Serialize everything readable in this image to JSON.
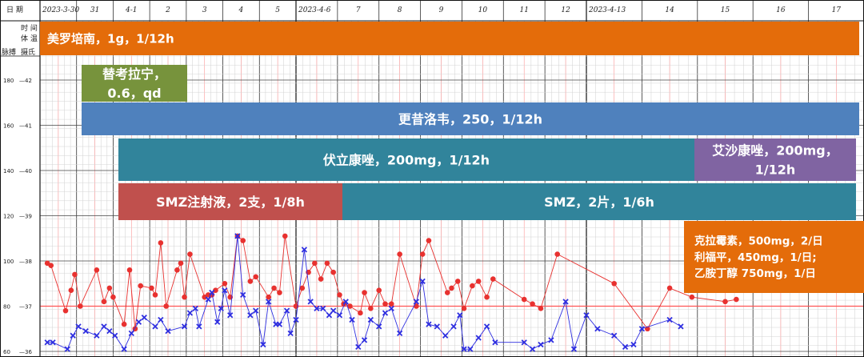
{
  "header": {
    "row_date_label": "日 期",
    "row_time_label": "时 间",
    "row_temp_label": "体 温",
    "pulse_label": "脉搏",
    "temp_unit_label": "摄氏",
    "dates": [
      "2023-3-30",
      "31",
      "4-1",
      "2",
      "3",
      "4",
      "5",
      "2023-4-6",
      "7",
      "8",
      "9",
      "10",
      "11",
      "12",
      "2023-4-13",
      "14",
      "15",
      "16",
      "17"
    ]
  },
  "axis": {
    "pulse_ticks": [
      "180",
      "160",
      "140",
      "120",
      "100",
      "80",
      "60"
    ],
    "temp_ticks": [
      "42",
      "41",
      "40",
      "39",
      "38",
      "37",
      "36"
    ]
  },
  "colors": {
    "orange": "#E46C0A",
    "green": "#77933C",
    "blue": "#4F81BD",
    "teal": "#31849B",
    "red": "#C0504D",
    "purple": "#8064A2",
    "red_line": "#FF5555",
    "red_series": "#E8312F",
    "blue_series": "#2E2EE0"
  },
  "treatments": [
    {
      "id": "meropenem",
      "label_lines": [
        "美罗培南，1g，1/12h"
      ],
      "color": "orange",
      "start_day": 0,
      "end_day": 19,
      "row": 0,
      "align": "left"
    },
    {
      "id": "tigecycline",
      "label_lines": [
        "替考拉宁，",
        "0.6，qd"
      ],
      "color": "green",
      "start_day": 1,
      "end_day": 3,
      "row": 1,
      "align": "center"
    },
    {
      "id": "ganciclovir",
      "label_lines": [
        "更昔洛韦，250，1/12h"
      ],
      "color": "blue",
      "start_day": 1,
      "end_day": 19,
      "row": 2,
      "align": "center"
    },
    {
      "id": "voriconazole",
      "label_lines": [
        "伏立康唑，200mg，1/12h"
      ],
      "color": "teal",
      "start_day": 2,
      "end_day": 16,
      "row": 3,
      "align": "center"
    },
    {
      "id": "isavuconazole",
      "label_lines": [
        "艾沙康唑，200mg，",
        "1/12h"
      ],
      "color": "purple",
      "start_day": 16,
      "end_day": 19,
      "row": 3,
      "align": "center"
    },
    {
      "id": "smz_iv",
      "label_lines": [
        "SMZ注射液，2支，1/8h"
      ],
      "color": "red",
      "start_day": 2,
      "end_day": 8,
      "row": 4,
      "align": "center"
    },
    {
      "id": "smz_po",
      "label_lines": [
        "SMZ，2片，1/6h"
      ],
      "color": "teal",
      "start_day": 8,
      "end_day": 19,
      "row": 4,
      "align": "center"
    },
    {
      "id": "combo",
      "label_lines": [
        "克拉霉素，500mg，2/日",
        "利福平，450mg，1/日;",
        "乙胺丁醇 750mg，1/日"
      ],
      "color": "orange",
      "start_day": 16,
      "end_day": 19,
      "row": 5,
      "align": "left"
    }
  ],
  "chart_data": {
    "type": "line",
    "title": "",
    "xlabel": "",
    "ylabel": "",
    "ylim_pulse": [
      60,
      190
    ],
    "ylim_temp": [
      36,
      42.5
    ],
    "series": [
      {
        "name": "",
        "color": "red_series",
        "marker": "circle",
        "values": [
          [
            0.2,
            99
          ],
          [
            0.3,
            98
          ],
          [
            0.7,
            78
          ],
          [
            0.85,
            87
          ],
          [
            0.95,
            94
          ],
          [
            1.1,
            80
          ],
          [
            1.55,
            96
          ],
          [
            1.75,
            82
          ],
          [
            1.9,
            88
          ],
          [
            2.0,
            84
          ],
          [
            2.3,
            72
          ],
          [
            2.45,
            96
          ],
          [
            2.6,
            70
          ],
          [
            2.75,
            89
          ],
          [
            3.05,
            88
          ],
          [
            3.15,
            85
          ],
          [
            3.3,
            108
          ],
          [
            3.45,
            80
          ],
          [
            3.75,
            96
          ],
          [
            3.85,
            99
          ],
          [
            3.95,
            84
          ],
          [
            4.1,
            103
          ],
          [
            4.5,
            84
          ],
          [
            4.6,
            85
          ],
          [
            4.7,
            85
          ],
          [
            4.8,
            87
          ],
          [
            5.05,
            90
          ],
          [
            5.2,
            84
          ],
          [
            5.4,
            111
          ],
          [
            5.55,
            109
          ],
          [
            5.75,
            91
          ],
          [
            5.9,
            93
          ],
          [
            6.25,
            84
          ],
          [
            6.4,
            88
          ],
          [
            6.55,
            86
          ],
          [
            6.7,
            111
          ],
          [
            7.0,
            80
          ],
          [
            7.15,
            88
          ],
          [
            7.3,
            95
          ],
          [
            7.45,
            99
          ],
          [
            7.6,
            92
          ],
          [
            7.75,
            99
          ],
          [
            7.9,
            95
          ],
          [
            8.05,
            85
          ],
          [
            8.15,
            81
          ],
          [
            8.3,
            80
          ],
          [
            8.55,
            77
          ],
          [
            8.65,
            86
          ],
          [
            8.8,
            79
          ],
          [
            9.0,
            87
          ],
          [
            9.15,
            81
          ],
          [
            9.3,
            81
          ],
          [
            9.5,
            103
          ],
          [
            9.9,
            80
          ],
          [
            10.05,
            103
          ],
          [
            10.2,
            109
          ],
          [
            10.65,
            86
          ],
          [
            10.75,
            88
          ],
          [
            10.9,
            91
          ],
          [
            11.05,
            79
          ],
          [
            11.25,
            89
          ],
          [
            11.4,
            91
          ],
          [
            11.6,
            84
          ],
          [
            11.75,
            92
          ],
          [
            12.5,
            83
          ],
          [
            12.7,
            81
          ],
          [
            12.9,
            79
          ],
          [
            13.3,
            103
          ],
          [
            14.5,
            90
          ],
          [
            15.1,
            70
          ],
          [
            15.5,
            88
          ],
          [
            15.9,
            84
          ],
          [
            16.5,
            82
          ],
          [
            16.7,
            83
          ]
        ]
      },
      {
        "name": "",
        "color": "blue_series",
        "marker": "cross",
        "values": [
          [
            0.2,
            64
          ],
          [
            0.35,
            64
          ],
          [
            0.75,
            61
          ],
          [
            0.9,
            67
          ],
          [
            1.05,
            71
          ],
          [
            1.25,
            69
          ],
          [
            1.55,
            67
          ],
          [
            1.75,
            71
          ],
          [
            1.9,
            69
          ],
          [
            2.05,
            67
          ],
          [
            2.3,
            61
          ],
          [
            2.5,
            68
          ],
          [
            2.7,
            73
          ],
          [
            2.85,
            75
          ],
          [
            3.15,
            71
          ],
          [
            3.3,
            74
          ],
          [
            3.5,
            69
          ],
          [
            3.95,
            71
          ],
          [
            4.1,
            77
          ],
          [
            4.25,
            79
          ],
          [
            4.35,
            71
          ],
          [
            4.6,
            83
          ],
          [
            4.7,
            86
          ],
          [
            4.85,
            73
          ],
          [
            4.95,
            79
          ],
          [
            5.05,
            87
          ],
          [
            5.2,
            76
          ],
          [
            5.4,
            111
          ],
          [
            5.55,
            85
          ],
          [
            5.75,
            76
          ],
          [
            5.9,
            78
          ],
          [
            6.1,
            63
          ],
          [
            6.25,
            82
          ],
          [
            6.45,
            72
          ],
          [
            6.55,
            72
          ],
          [
            6.75,
            78
          ],
          [
            6.85,
            68
          ],
          [
            7.0,
            74
          ],
          [
            7.2,
            105
          ],
          [
            7.35,
            82
          ],
          [
            7.5,
            79
          ],
          [
            7.65,
            79
          ],
          [
            7.8,
            76
          ],
          [
            7.9,
            78
          ],
          [
            8.05,
            76
          ],
          [
            8.2,
            82
          ],
          [
            8.35,
            74
          ],
          [
            8.5,
            62
          ],
          [
            8.65,
            65
          ],
          [
            8.8,
            74
          ],
          [
            9.0,
            71
          ],
          [
            9.15,
            77
          ],
          [
            9.3,
            79
          ],
          [
            9.5,
            68
          ],
          [
            9.9,
            82
          ],
          [
            10.05,
            91
          ],
          [
            10.2,
            72
          ],
          [
            10.4,
            71
          ],
          [
            10.6,
            67
          ],
          [
            10.8,
            71
          ],
          [
            10.95,
            76
          ],
          [
            11.05,
            61
          ],
          [
            11.2,
            61
          ],
          [
            11.4,
            66
          ],
          [
            11.6,
            71
          ],
          [
            11.8,
            64
          ],
          [
            12.5,
            64
          ],
          [
            12.7,
            61
          ],
          [
            12.9,
            63
          ],
          [
            13.15,
            65
          ],
          [
            13.5,
            82
          ],
          [
            13.7,
            61
          ],
          [
            14.0,
            76
          ],
          [
            14.2,
            70
          ],
          [
            14.5,
            67
          ],
          [
            14.7,
            62
          ],
          [
            14.85,
            63
          ],
          [
            15.0,
            70
          ],
          [
            15.5,
            74
          ],
          [
            15.7,
            71
          ]
        ]
      }
    ]
  }
}
